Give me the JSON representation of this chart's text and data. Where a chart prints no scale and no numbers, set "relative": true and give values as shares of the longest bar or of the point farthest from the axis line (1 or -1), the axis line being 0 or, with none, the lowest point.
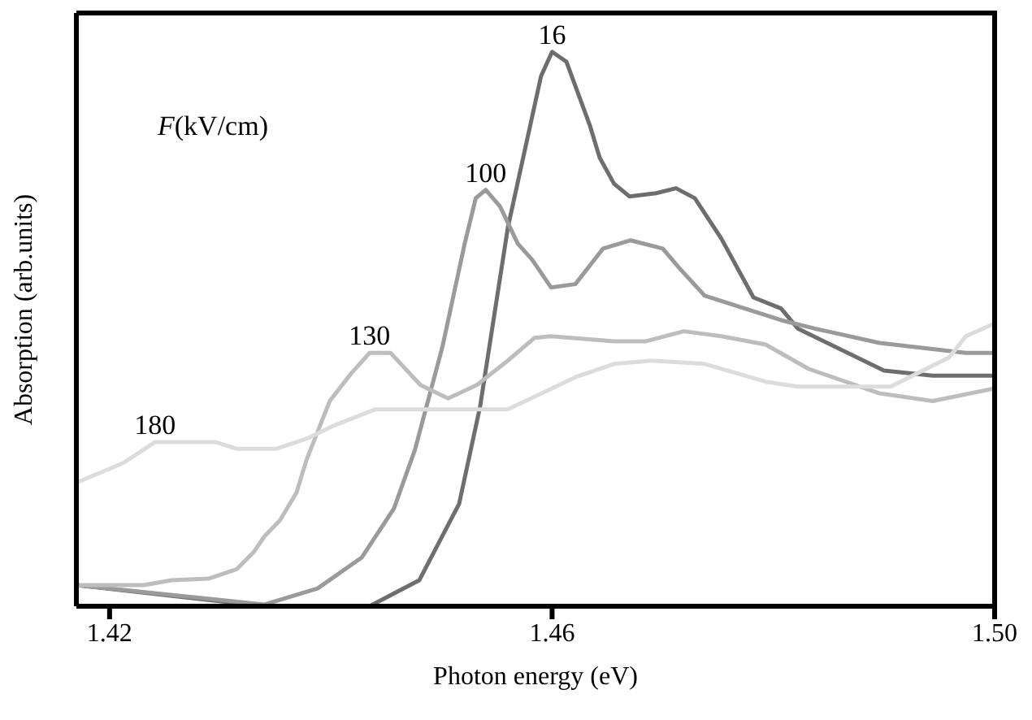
{
  "chart_data": {
    "type": "line",
    "xlabel": "Photon energy (eV)",
    "ylabel": "Absorption (arb.units)",
    "legend_title": "F(kV/cm)",
    "relative": true,
    "xlim": [
      1.417,
      1.5
    ],
    "xticks": [
      1.42,
      1.46,
      {
        "value": 1.5,
        "label": "1.50"
      }
    ],
    "marker": "none",
    "line_style": "solid",
    "series": [
      {
        "name": "16",
        "color": "#6e6e6e",
        "x": [
          1.417,
          1.434,
          1.4435,
          1.448,
          1.4516,
          1.4535,
          1.456,
          1.459,
          1.46,
          1.4613,
          1.4634,
          1.4643,
          1.4656,
          1.467,
          1.4694,
          1.4712,
          1.4729,
          1.4753,
          1.4782,
          1.4807,
          1.4822,
          1.49,
          1.4944,
          1.5
        ],
        "values": [
          0.038,
          0,
          0,
          0.047,
          0.185,
          0.361,
          0.683,
          0.956,
          1.0,
          0.982,
          0.868,
          0.809,
          0.762,
          0.739,
          0.745,
          0.754,
          0.736,
          0.663,
          0.557,
          0.537,
          0.501,
          0.425,
          0.416,
          0.416
        ]
      },
      {
        "name": "100",
        "color": "#9a9a9a",
        "x": [
          1.417,
          1.434,
          1.4388,
          1.4428,
          1.4457,
          1.4476,
          1.4501,
          1.4521,
          1.4531,
          1.454,
          1.4553,
          1.4569,
          1.4582,
          1.4599,
          1.4621,
          1.4646,
          1.4671,
          1.47,
          1.4715,
          1.4738,
          1.4807,
          1.4837,
          1.4896,
          1.4974,
          1.5
        ],
        "values": [
          0.038,
          0.003,
          0.032,
          0.088,
          0.176,
          0.282,
          0.469,
          0.654,
          0.736,
          0.751,
          0.721,
          0.654,
          0.625,
          0.575,
          0.581,
          0.645,
          0.66,
          0.645,
          0.61,
          0.56,
          0.516,
          0.501,
          0.475,
          0.457,
          0.457
        ]
      },
      {
        "name": "130",
        "color": "#bdbdbd",
        "x": [
          1.417,
          1.4231,
          1.4256,
          1.429,
          1.4315,
          1.433,
          1.434,
          1.4354,
          1.4369,
          1.4378,
          1.4399,
          1.4418,
          1.4435,
          1.4454,
          1.4481,
          1.4506,
          1.4532,
          1.456,
          1.4584,
          1.4599,
          1.4656,
          1.4685,
          1.4719,
          1.4753,
          1.4793,
          1.4832,
          1.4896,
          1.4944,
          1.5
        ],
        "values": [
          0.038,
          0.038,
          0.047,
          0.05,
          0.067,
          0.097,
          0.126,
          0.155,
          0.205,
          0.264,
          0.37,
          0.419,
          0.457,
          0.457,
          0.399,
          0.375,
          0.399,
          0.443,
          0.484,
          0.487,
          0.478,
          0.478,
          0.496,
          0.487,
          0.472,
          0.428,
          0.384,
          0.37,
          0.393
        ]
      },
      {
        "name": "180",
        "color": "#dcdcdc",
        "x": [
          1.417,
          1.4212,
          1.4241,
          1.4296,
          1.4315,
          1.4351,
          1.4378,
          1.4403,
          1.444,
          1.456,
          1.4621,
          1.4656,
          1.469,
          1.4738,
          1.4793,
          1.4822,
          1.4906,
          1.4959,
          1.4974,
          1.5
        ],
        "values": [
          0.223,
          0.258,
          0.296,
          0.296,
          0.284,
          0.284,
          0.302,
          0.326,
          0.355,
          0.355,
          0.413,
          0.437,
          0.443,
          0.437,
          0.405,
          0.396,
          0.396,
          0.449,
          0.487,
          0.51
        ]
      }
    ]
  }
}
